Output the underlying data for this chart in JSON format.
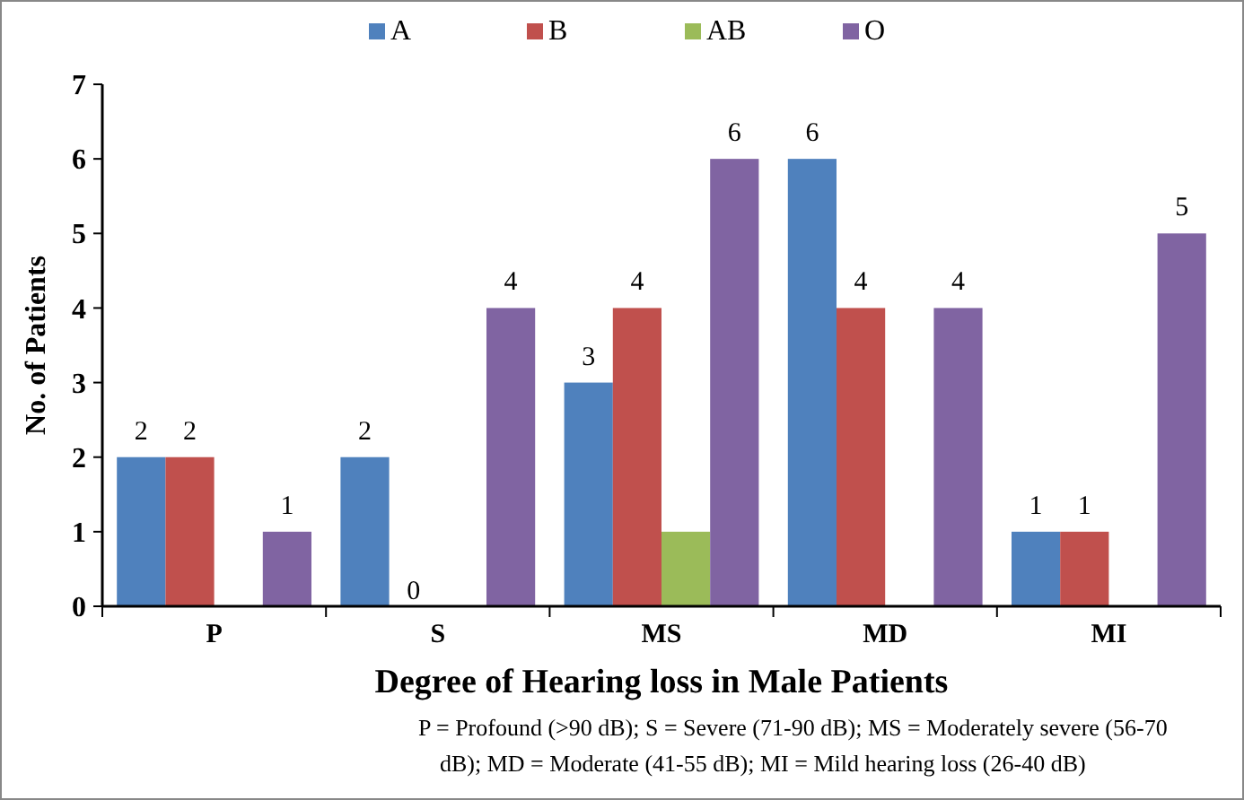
{
  "chart_data": {
    "type": "bar",
    "xlabel": "Degree of Hearing loss in Male Patients",
    "ylabel": "No. of Patients",
    "categories": [
      "P",
      "S",
      "MS",
      "MD",
      "MI"
    ],
    "series": [
      {
        "name": "A",
        "color": "#4f81bd",
        "values": [
          2,
          2,
          3,
          6,
          1
        ],
        "value_labels": [
          "2",
          "2",
          "3",
          "6",
          "1"
        ]
      },
      {
        "name": "B",
        "color": "#c0504d",
        "values": [
          2,
          0,
          4,
          4,
          1
        ],
        "value_labels": [
          "2",
          "0",
          "4",
          "4",
          "1"
        ]
      },
      {
        "name": "AB",
        "color": "#9bbb59",
        "values": [
          0,
          0,
          1,
          0,
          0
        ],
        "value_labels": [
          null,
          null,
          null,
          null,
          null
        ]
      },
      {
        "name": "O",
        "color": "#8064a2",
        "values": [
          1,
          4,
          6,
          4,
          5
        ],
        "value_labels": [
          "1",
          "4",
          "6",
          "4",
          "5"
        ]
      }
    ],
    "ylim": [
      0,
      7
    ],
    "yticks": [
      0,
      1,
      2,
      3,
      4,
      5,
      6,
      7
    ],
    "grid": false,
    "legend": "top",
    "annotations": [
      "P = Profound (>90 dB); S = Severe (71-90 dB); MS = Moderately severe (56-70 dB); MD = Moderate (41-55 dB); MI = Mild hearing loss (26-40 dB)"
    ]
  }
}
